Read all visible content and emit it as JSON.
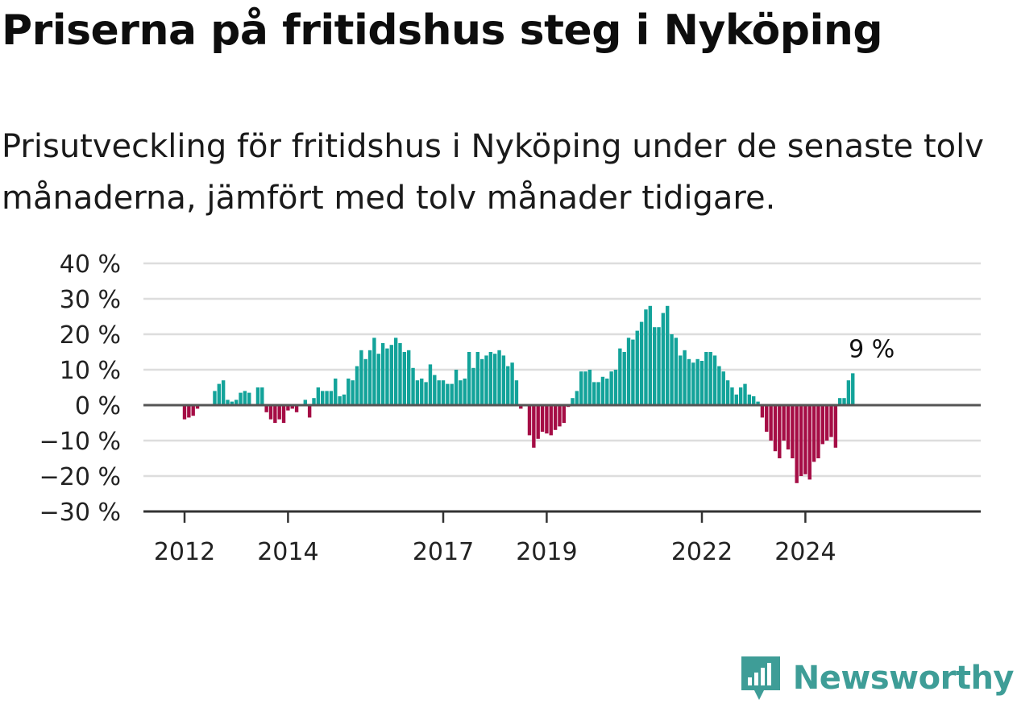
{
  "header": {
    "title": "Priserna på fritidshus steg i Nyköping",
    "subtitle": "Prisutveckling för fritidshus i Nyköping under de senaste tolv månaderna, jämfört med tolv månader tidigare."
  },
  "brand": {
    "name": "Newsworthy",
    "icon": "newsworthy-logo-icon",
    "color": "#3e9d97"
  },
  "colors": {
    "positive": "#13a39a",
    "negative": "#a50d45",
    "zero_line": "#555555",
    "grid": "#dddddd"
  },
  "chart_data": {
    "type": "bar",
    "title": "Priserna på fritidshus steg i Nyköping",
    "start": "2012-01",
    "frequency": "monthly",
    "ylim": [
      -30,
      40
    ],
    "y_ticks": [
      -30,
      -20,
      -10,
      0,
      10,
      20,
      30,
      40
    ],
    "y_tick_labels": [
      "−30 %",
      "−20 %",
      "−10 %",
      "0 %",
      "10 %",
      "20 %",
      "30 %",
      "40 %"
    ],
    "x_ticks": [
      "2012",
      "2014",
      "2017",
      "2019",
      "2022",
      "2024"
    ],
    "grid": true,
    "annotation": {
      "text": "9 %",
      "month": "2025-04",
      "value": 9
    },
    "values": [
      -4,
      -3.5,
      -3,
      -1,
      0,
      0,
      0,
      4,
      6,
      7,
      1.5,
      1,
      1.5,
      3.5,
      4,
      3.5,
      0,
      5,
      5,
      -2,
      -4,
      -5,
      -4,
      -5,
      -1.5,
      -1,
      -2,
      0,
      1.5,
      -3.5,
      2,
      5,
      4,
      4,
      4,
      7.5,
      2.5,
      3,
      7.5,
      7,
      11,
      15.5,
      13,
      15.5,
      19,
      14.5,
      17.5,
      16,
      17,
      19,
      17.5,
      15,
      15.5,
      10.5,
      7,
      7.5,
      6.5,
      11.5,
      8.5,
      7,
      7,
      6,
      6,
      10,
      7,
      7.5,
      15,
      10.5,
      15,
      13,
      14,
      15,
      14.5,
      15.5,
      14,
      11,
      12,
      7,
      -1,
      0,
      -8.5,
      -12,
      -9.5,
      -7.5,
      -8,
      -8.5,
      -7,
      -6,
      -5,
      -0.5,
      2,
      4,
      9.5,
      9.5,
      10,
      6.5,
      6.5,
      8,
      7.5,
      9.5,
      10,
      16,
      15,
      19,
      18.5,
      21,
      23.5,
      27,
      28,
      22,
      22,
      26,
      28,
      20,
      19,
      14,
      15.5,
      13,
      12,
      13,
      12.5,
      15,
      15,
      14,
      11,
      9.5,
      7,
      5,
      3,
      5,
      6,
      3,
      2.5,
      1,
      -3.5,
      -7.5,
      -10,
      -13,
      -15,
      -10,
      -12.5,
      -15,
      -22,
      -20,
      -19.5,
      -21,
      -16,
      -15,
      -11,
      -10,
      -9,
      -12,
      2,
      2,
      7,
      9
    ]
  }
}
